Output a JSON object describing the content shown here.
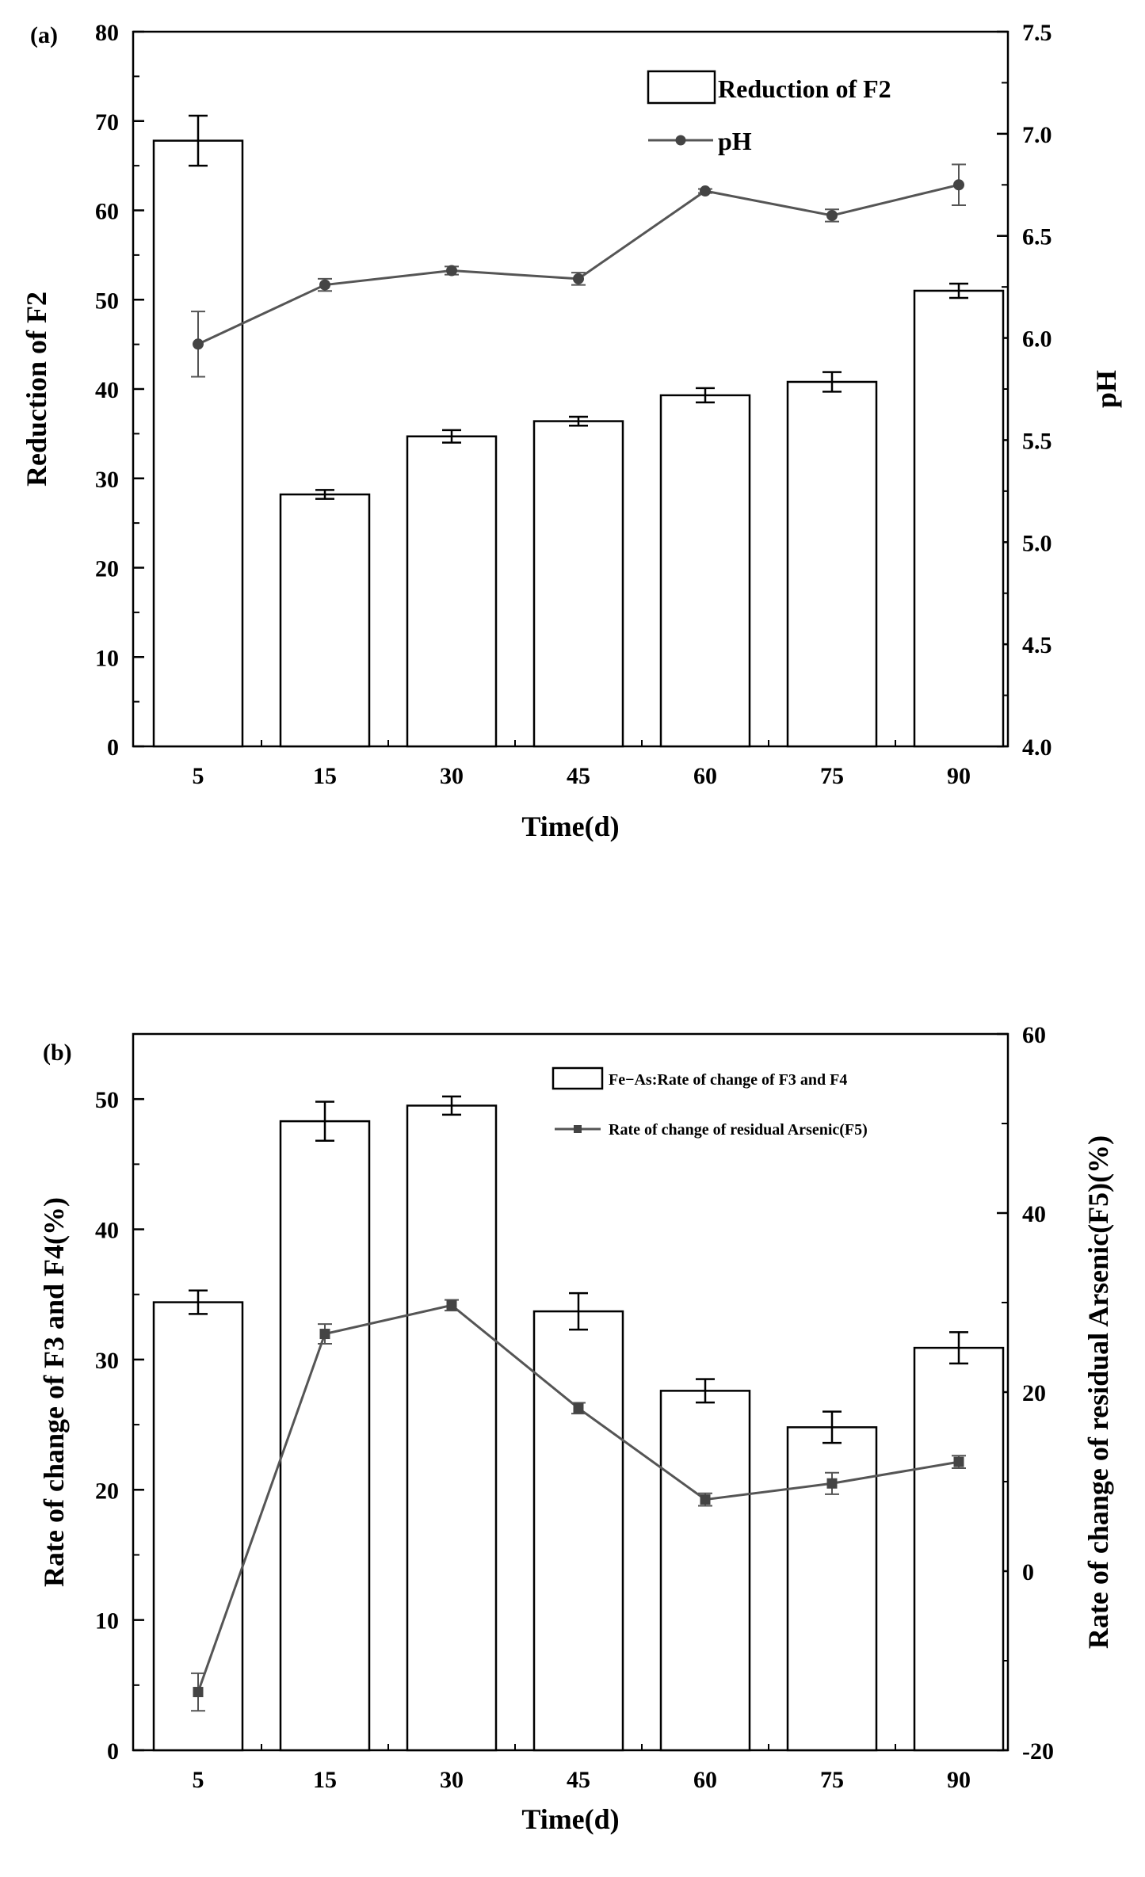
{
  "chart_data": [
    {
      "panel_label": "(a)",
      "type": "bar",
      "categories": [
        "5",
        "15",
        "30",
        "45",
        "60",
        "75",
        "90"
      ],
      "xlabel": "Time(d)",
      "ylabel_left": "Reduction of F2",
      "ylabel_right": "pH",
      "ylim_left": [
        0,
        80
      ],
      "ylim_right": [
        4.0,
        7.5
      ],
      "left_ticks": [
        "0",
        "10",
        "20",
        "30",
        "40",
        "50",
        "60",
        "70",
        "80"
      ],
      "right_ticks": [
        "4.0",
        "4.5",
        "5.0",
        "5.5",
        "6.0",
        "6.5",
        "7.0",
        "7.5"
      ],
      "legend": [
        "Reduction of F2",
        "pH"
      ],
      "series": [
        {
          "name": "Reduction of F2",
          "kind": "bar",
          "axis": "left",
          "values": [
            67.8,
            28.2,
            34.7,
            36.4,
            39.3,
            40.8,
            51.0
          ],
          "errors": [
            2.8,
            0.5,
            0.7,
            0.5,
            0.8,
            1.1,
            0.8
          ]
        },
        {
          "name": "pH",
          "kind": "line",
          "axis": "right",
          "values": [
            5.97,
            6.26,
            6.33,
            6.29,
            6.72,
            6.6,
            6.75
          ],
          "errors": [
            0.16,
            0.03,
            0.02,
            0.03,
            0.01,
            0.03,
            0.1
          ]
        }
      ]
    },
    {
      "panel_label": "(b)",
      "type": "bar",
      "categories": [
        "5",
        "15",
        "30",
        "45",
        "60",
        "75",
        "90"
      ],
      "xlabel": "Time(d)",
      "ylabel_left": "Rate of change of F3 and F4(%)",
      "ylabel_right": "Rate of change of residual Arsenic(F5)(%)",
      "ylim_left": [
        0,
        55
      ],
      "ylim_right": [
        -20,
        60
      ],
      "left_ticks": [
        "0",
        "10",
        "20",
        "30",
        "40",
        "50"
      ],
      "right_ticks": [
        "-20",
        "0",
        "20",
        "40",
        "60"
      ],
      "legend": [
        "Fe−As:Rate of change of F3 and F4",
        "Rate of change of residual Arsenic(F5)"
      ],
      "series": [
        {
          "name": "Fe−As:Rate of change of F3 and F4",
          "kind": "bar",
          "axis": "left",
          "values": [
            34.4,
            48.3,
            49.5,
            33.7,
            27.6,
            24.8,
            30.9
          ],
          "errors": [
            0.9,
            1.5,
            0.7,
            1.4,
            0.9,
            1.2,
            1.2
          ]
        },
        {
          "name": "Rate of change of residual Arsenic(F5)",
          "kind": "line",
          "axis": "right",
          "values": [
            -13.5,
            26.5,
            29.7,
            18.2,
            8.0,
            9.8,
            12.2
          ],
          "errors": [
            2.1,
            1.1,
            0.6,
            0.6,
            0.7,
            1.2,
            0.7
          ]
        }
      ]
    }
  ]
}
